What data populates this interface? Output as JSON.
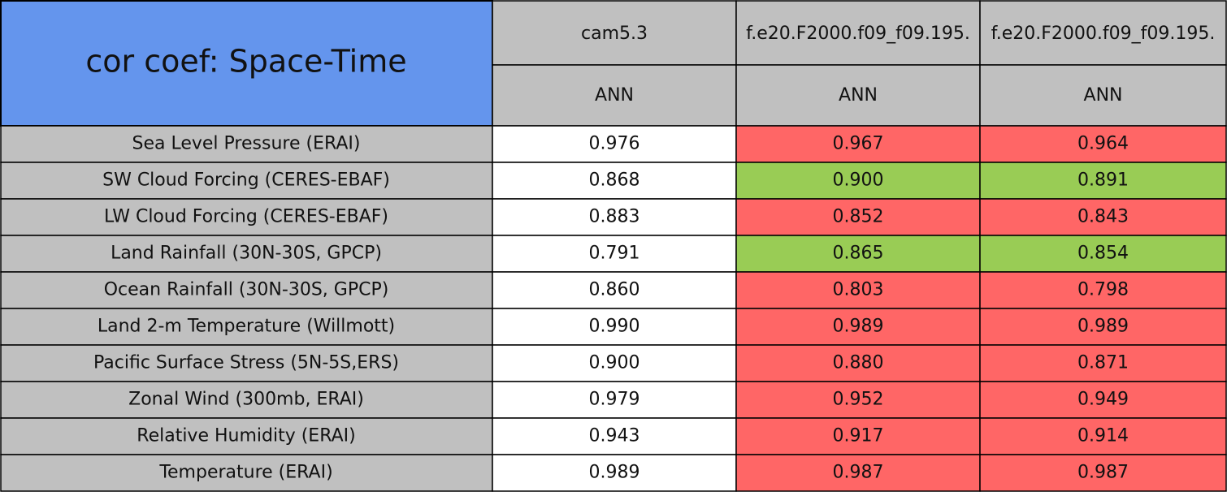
{
  "title": "cor coef: Space-Time",
  "columns": [
    {
      "name": "cam5.3",
      "season": "ANN"
    },
    {
      "name": "f.e20.F2000.f09_f09.195.",
      "season": "ANN"
    },
    {
      "name": "f.e20.F2000.f09_f09.195.",
      "season": "ANN"
    }
  ],
  "rows": [
    {
      "label": "Sea Level Pressure (ERAI)",
      "cells": [
        "0.976",
        "0.967",
        "0.964"
      ],
      "colors": [
        "#ffffff",
        "#ff6666",
        "#ff6666"
      ]
    },
    {
      "label": "SW Cloud Forcing (CERES-EBAF)",
      "cells": [
        "0.868",
        "0.900",
        "0.891"
      ],
      "colors": [
        "#ffffff",
        "#99cc55",
        "#99cc55"
      ]
    },
    {
      "label": "LW Cloud Forcing (CERES-EBAF)",
      "cells": [
        "0.883",
        "0.852",
        "0.843"
      ],
      "colors": [
        "#ffffff",
        "#ff6666",
        "#ff6666"
      ]
    },
    {
      "label": "Land Rainfall (30N-30S, GPCP)",
      "cells": [
        "0.791",
        "0.865",
        "0.854"
      ],
      "colors": [
        "#ffffff",
        "#99cc55",
        "#99cc55"
      ]
    },
    {
      "label": "Ocean Rainfall (30N-30S, GPCP)",
      "cells": [
        "0.860",
        "0.803",
        "0.798"
      ],
      "colors": [
        "#ffffff",
        "#ff6666",
        "#ff6666"
      ]
    },
    {
      "label": "Land 2-m Temperature (Willmott)",
      "cells": [
        "0.990",
        "0.989",
        "0.989"
      ],
      "colors": [
        "#ffffff",
        "#ff6666",
        "#ff6666"
      ]
    },
    {
      "label": "Pacific Surface Stress (5N-5S,ERS)",
      "cells": [
        "0.900",
        "0.880",
        "0.871"
      ],
      "colors": [
        "#ffffff",
        "#ff6666",
        "#ff6666"
      ]
    },
    {
      "label": "Zonal Wind (300mb, ERAI)",
      "cells": [
        "0.979",
        "0.952",
        "0.949"
      ],
      "colors": [
        "#ffffff",
        "#ff6666",
        "#ff6666"
      ]
    },
    {
      "label": "Relative Humidity (ERAI)",
      "cells": [
        "0.943",
        "0.917",
        "0.914"
      ],
      "colors": [
        "#ffffff",
        "#ff6666",
        "#ff6666"
      ]
    },
    {
      "label": "Temperature (ERAI)",
      "cells": [
        "0.989",
        "0.987",
        "0.987"
      ],
      "colors": [
        "#ffffff",
        "#ff6666",
        "#ff6666"
      ]
    }
  ]
}
